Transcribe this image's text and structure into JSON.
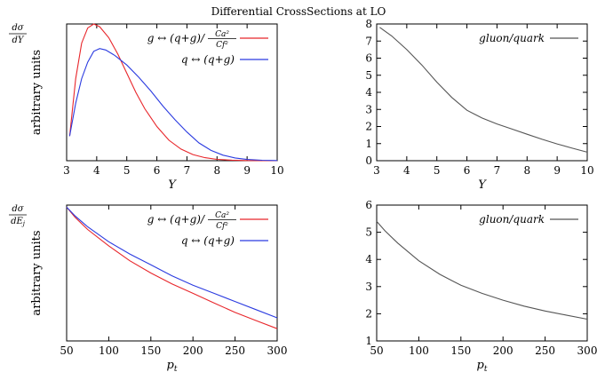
{
  "page": {
    "title": "Differential CrossSections at LO"
  },
  "chart_data": [
    {
      "id": "dY-ratio",
      "type": "line",
      "xlabel": "Y",
      "ylabel": "arbitrary units",
      "corner_label_num": "dσ",
      "corner_label_den": "dY",
      "xlim": [
        3,
        10
      ],
      "ylim": [
        0,
        1
      ],
      "xticks": [
        3,
        4,
        5,
        6,
        7,
        8,
        9,
        10
      ],
      "yticks": [],
      "legend_position": "top-right",
      "series": [
        {
          "name": "g ↔ (q+g)/ Ca²/Cf²",
          "color": "#e8262b",
          "x": [
            3.1,
            3.3,
            3.5,
            3.7,
            3.9,
            4.1,
            4.4,
            4.7,
            5.0,
            5.3,
            5.6,
            6.0,
            6.4,
            6.8,
            7.2,
            7.6,
            8.0,
            8.5,
            9.0,
            9.5,
            10.0
          ],
          "y": [
            0.18,
            0.6,
            0.86,
            0.97,
            1.0,
            0.98,
            0.9,
            0.78,
            0.64,
            0.5,
            0.38,
            0.25,
            0.15,
            0.085,
            0.045,
            0.022,
            0.01,
            0.004,
            0.0015,
            0.0005,
            0.0002
          ]
        },
        {
          "name": "q ↔ (q+g)",
          "color": "#2b3be0",
          "x": [
            3.1,
            3.3,
            3.5,
            3.7,
            3.9,
            4.1,
            4.3,
            4.6,
            5.0,
            5.4,
            5.8,
            6.2,
            6.6,
            7.0,
            7.4,
            7.8,
            8.2,
            8.6,
            9.0,
            9.5,
            10.0
          ],
          "y": [
            0.18,
            0.42,
            0.6,
            0.72,
            0.8,
            0.82,
            0.81,
            0.77,
            0.7,
            0.61,
            0.51,
            0.4,
            0.3,
            0.21,
            0.13,
            0.075,
            0.04,
            0.02,
            0.009,
            0.003,
            0.001
          ]
        }
      ]
    },
    {
      "id": "dY-gq",
      "type": "line",
      "xlabel": "Y",
      "ylabel": "",
      "xlim": [
        3,
        10
      ],
      "ylim": [
        0,
        8
      ],
      "xticks": [
        3,
        4,
        5,
        6,
        7,
        8,
        9,
        10
      ],
      "yticks": [
        0,
        1,
        2,
        3,
        4,
        5,
        6,
        7,
        8
      ],
      "legend_position": "top-right",
      "series": [
        {
          "name": "gluon/quark",
          "color": "#555555",
          "x": [
            3.1,
            3.5,
            4.0,
            4.5,
            5.0,
            5.5,
            6.0,
            6.5,
            7.0,
            7.5,
            8.0,
            8.5,
            9.0,
            9.5,
            10.0
          ],
          "y": [
            7.8,
            7.3,
            6.5,
            5.6,
            4.6,
            3.7,
            2.95,
            2.5,
            2.15,
            1.85,
            1.55,
            1.25,
            0.98,
            0.73,
            0.5
          ]
        }
      ]
    },
    {
      "id": "dEj-ratio",
      "type": "line",
      "xlabel": "p_t",
      "ylabel": "arbitrary units",
      "corner_label_num": "dσ",
      "corner_label_den": "dE_j",
      "xlim": [
        50,
        300
      ],
      "ylim": [
        0,
        1
      ],
      "xticks": [
        50,
        100,
        150,
        200,
        250,
        300
      ],
      "yticks": [],
      "legend_position": "top-right",
      "series": [
        {
          "name": "g ↔ (q+g)/ Ca²/Cf²",
          "color": "#e8262b",
          "x": [
            50,
            60,
            75,
            100,
            125,
            150,
            175,
            200,
            225,
            250,
            275,
            300
          ],
          "y": [
            0.985,
            0.91,
            0.82,
            0.7,
            0.59,
            0.5,
            0.42,
            0.35,
            0.28,
            0.21,
            0.15,
            0.09
          ]
        },
        {
          "name": "q ↔ (q+g)",
          "color": "#2b3be0",
          "x": [
            50,
            60,
            75,
            100,
            125,
            150,
            175,
            200,
            225,
            250,
            275,
            300
          ],
          "y": [
            0.985,
            0.92,
            0.84,
            0.73,
            0.64,
            0.56,
            0.48,
            0.41,
            0.35,
            0.29,
            0.23,
            0.17
          ]
        }
      ]
    },
    {
      "id": "dEj-gq",
      "type": "line",
      "xlabel": "p_t",
      "ylabel": "",
      "xlim": [
        50,
        300
      ],
      "ylim": [
        1,
        6
      ],
      "xticks": [
        50,
        100,
        150,
        200,
        250,
        300
      ],
      "yticks": [
        1,
        2,
        3,
        4,
        5,
        6
      ],
      "legend_position": "top-right",
      "series": [
        {
          "name": "gluon/quark",
          "color": "#555555",
          "x": [
            50,
            60,
            75,
            100,
            125,
            150,
            175,
            200,
            225,
            250,
            275,
            300
          ],
          "y": [
            5.4,
            5.05,
            4.6,
            3.95,
            3.45,
            3.05,
            2.75,
            2.5,
            2.28,
            2.1,
            1.95,
            1.8
          ]
        }
      ]
    }
  ]
}
